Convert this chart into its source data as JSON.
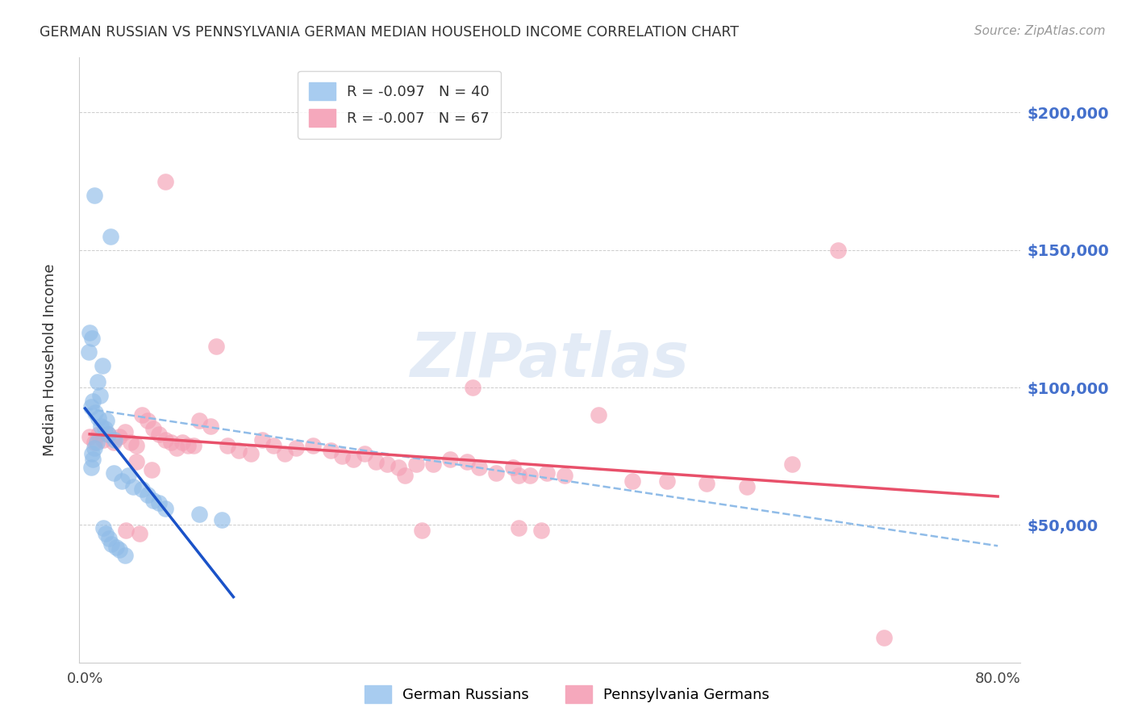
{
  "title": "GERMAN RUSSIAN VS PENNSYLVANIA GERMAN MEDIAN HOUSEHOLD INCOME CORRELATION CHART",
  "source": "Source: ZipAtlas.com",
  "ylabel": "Median Household Income",
  "xlim": [
    -0.005,
    0.82
  ],
  "ylim": [
    0,
    220000
  ],
  "yticks": [
    0,
    50000,
    100000,
    150000,
    200000
  ],
  "ytick_labels": [
    "",
    "$50,000",
    "$100,000",
    "$150,000",
    "$200,000"
  ],
  "xticks": [
    0.0,
    0.1,
    0.2,
    0.3,
    0.4,
    0.5,
    0.6,
    0.7,
    0.8
  ],
  "xtick_labels": [
    "0.0%",
    "",
    "",
    "",
    "",
    "",
    "",
    "",
    "80.0%"
  ],
  "watermark_text": "ZIPatlas",
  "blue_scatter_color": "#90bce8",
  "pink_scatter_color": "#f4a0b5",
  "trend_blue_solid_color": "#1a52c8",
  "trend_blue_dash_color": "#90bce8",
  "trend_pink_color": "#e8506a",
  "right_label_color": "#4470cc",
  "grid_color": "#c8c8c8",
  "axis_color": "#cccccc",
  "background_color": "#ffffff",
  "legend1_label": "R = -0.097   N = 40",
  "legend2_label": "R = -0.007   N = 67",
  "bottom_legend1": "German Russians",
  "bottom_legend2": "Pennsylvania Germans",
  "gr_x": [
    0.008,
    0.022,
    0.004,
    0.006,
    0.003,
    0.015,
    0.011,
    0.013,
    0.007,
    0.005,
    0.009,
    0.012,
    0.019,
    0.014,
    0.017,
    0.02,
    0.026,
    0.01,
    0.008,
    0.006,
    0.007,
    0.005,
    0.025,
    0.038,
    0.032,
    0.042,
    0.05,
    0.055,
    0.06,
    0.065,
    0.07,
    0.1,
    0.12,
    0.016,
    0.018,
    0.021,
    0.023,
    0.027,
    0.03,
    0.035
  ],
  "gr_y": [
    170000,
    155000,
    120000,
    118000,
    113000,
    108000,
    102000,
    97000,
    95000,
    93000,
    91000,
    89000,
    88000,
    86000,
    85000,
    83000,
    81000,
    80000,
    78000,
    76000,
    74000,
    71000,
    69000,
    68000,
    66000,
    64000,
    63000,
    61000,
    59000,
    58000,
    56000,
    54000,
    52000,
    49000,
    47000,
    45000,
    43000,
    42000,
    41000,
    39000
  ],
  "pg_x": [
    0.004,
    0.008,
    0.012,
    0.016,
    0.02,
    0.025,
    0.03,
    0.035,
    0.04,
    0.045,
    0.05,
    0.055,
    0.06,
    0.065,
    0.07,
    0.075,
    0.08,
    0.085,
    0.09,
    0.095,
    0.1,
    0.11,
    0.115,
    0.125,
    0.135,
    0.145,
    0.155,
    0.165,
    0.175,
    0.185,
    0.2,
    0.215,
    0.225,
    0.235,
    0.245,
    0.255,
    0.265,
    0.275,
    0.29,
    0.305,
    0.32,
    0.335,
    0.345,
    0.36,
    0.375,
    0.39,
    0.405,
    0.42,
    0.45,
    0.48,
    0.51,
    0.545,
    0.58,
    0.62,
    0.66,
    0.7,
    0.38,
    0.34,
    0.07,
    0.28,
    0.38,
    0.4,
    0.045,
    0.295,
    0.048,
    0.036,
    0.058
  ],
  "pg_y": [
    82000,
    80000,
    83000,
    81000,
    83000,
    80000,
    82000,
    84000,
    80000,
    79000,
    90000,
    88000,
    85000,
    83000,
    81000,
    80000,
    78000,
    80000,
    79000,
    79000,
    88000,
    86000,
    115000,
    79000,
    77000,
    76000,
    81000,
    79000,
    76000,
    78000,
    79000,
    77000,
    75000,
    74000,
    76000,
    73000,
    72000,
    71000,
    72000,
    72000,
    74000,
    73000,
    71000,
    69000,
    71000,
    68000,
    69000,
    68000,
    90000,
    66000,
    66000,
    65000,
    64000,
    72000,
    150000,
    9000,
    68000,
    100000,
    175000,
    68000,
    49000,
    48000,
    73000,
    48000,
    47000,
    48000,
    70000
  ]
}
